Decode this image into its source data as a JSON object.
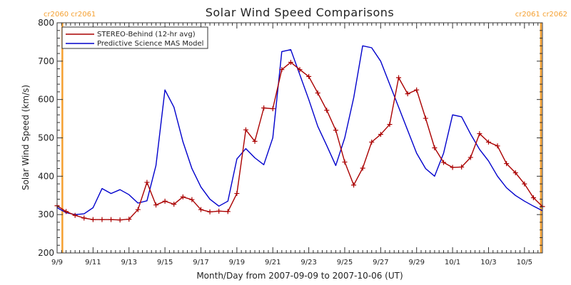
{
  "chart_data": {
    "type": "line",
    "title": "Solar Wind Speed Comparisons",
    "xlabel": "Month/Day from 2007-09-09 to 2007-10-06 (UT)",
    "ylabel": "Solar Wind Speed (km/s)",
    "xlim": [
      "2007-09-09T00:00",
      "2007-10-06T00:00"
    ],
    "ylim": [
      200,
      800
    ],
    "x_tick_labels": [
      "9/9",
      "9/11",
      "9/13",
      "9/15",
      "9/17",
      "9/19",
      "9/21",
      "9/23",
      "9/25",
      "9/27",
      "9/29",
      "10/1",
      "10/3",
      "10/5"
    ],
    "y_tick_labels": [
      "200",
      "300",
      "400",
      "500",
      "600",
      "700",
      "800"
    ],
    "carrington_markers": [
      {
        "label": "cr2060 cr2061",
        "x": "2007-09-09T07:00",
        "position": "left"
      },
      {
        "label": "cr2061 cr2062",
        "x": "2007-10-05T22:00",
        "position": "right"
      }
    ],
    "marker_color": "#f5a030",
    "legend_position": "top-left",
    "series": [
      {
        "name": "STEREO-Behind (12-hr avg)",
        "color": "#aa0000",
        "marker": "plus",
        "x": [
          "2007-09-09T00:00",
          "2007-09-09T12:00",
          "2007-09-10T00:00",
          "2007-09-10T12:00",
          "2007-09-11T00:00",
          "2007-09-11T12:00",
          "2007-09-12T00:00",
          "2007-09-12T12:00",
          "2007-09-13T00:00",
          "2007-09-13T12:00",
          "2007-09-14T00:00",
          "2007-09-14T12:00",
          "2007-09-15T00:00",
          "2007-09-15T12:00",
          "2007-09-16T00:00",
          "2007-09-16T12:00",
          "2007-09-17T00:00",
          "2007-09-17T12:00",
          "2007-09-18T00:00",
          "2007-09-18T12:00",
          "2007-09-19T00:00",
          "2007-09-19T12:00",
          "2007-09-20T00:00",
          "2007-09-20T12:00",
          "2007-09-21T00:00",
          "2007-09-21T12:00",
          "2007-09-22T00:00",
          "2007-09-22T12:00",
          "2007-09-23T00:00",
          "2007-09-23T12:00",
          "2007-09-24T00:00",
          "2007-09-24T12:00",
          "2007-09-25T00:00",
          "2007-09-25T12:00",
          "2007-09-26T00:00",
          "2007-09-26T12:00",
          "2007-09-27T00:00",
          "2007-09-27T12:00",
          "2007-09-28T00:00",
          "2007-09-28T12:00",
          "2007-09-29T00:00",
          "2007-09-29T12:00",
          "2007-09-30T00:00",
          "2007-09-30T12:00",
          "2007-10-01T00:00",
          "2007-10-01T12:00",
          "2007-10-02T00:00",
          "2007-10-02T12:00",
          "2007-10-03T00:00",
          "2007-10-03T12:00",
          "2007-10-04T00:00",
          "2007-10-04T12:00",
          "2007-10-05T00:00",
          "2007-10-05T12:00",
          "2007-10-06T00:00"
        ],
        "values": [
          323,
          308,
          298,
          291,
          287,
          287,
          287,
          286,
          288,
          313,
          384,
          325,
          335,
          327,
          346,
          339,
          313,
          307,
          309,
          308,
          355,
          521,
          491,
          578,
          576,
          678,
          697,
          678,
          660,
          617,
          572,
          520,
          437,
          377,
          421,
          489,
          509,
          535,
          657,
          615,
          625,
          551,
          474,
          436,
          423,
          424,
          449,
          511,
          489,
          479,
          433,
          409,
          380,
          344,
          321
        ]
      },
      {
        "name": "Predictive Science MAS Model",
        "color": "#0000cc",
        "marker": "none",
        "x": [
          "2007-09-09T00:00",
          "2007-09-09T12:00",
          "2007-09-10T00:00",
          "2007-09-10T12:00",
          "2007-09-11T00:00",
          "2007-09-11T12:00",
          "2007-09-12T00:00",
          "2007-09-12T12:00",
          "2007-09-13T00:00",
          "2007-09-13T12:00",
          "2007-09-14T00:00",
          "2007-09-14T12:00",
          "2007-09-15T00:00",
          "2007-09-15T12:00",
          "2007-09-16T00:00",
          "2007-09-16T12:00",
          "2007-09-17T00:00",
          "2007-09-17T12:00",
          "2007-09-18T00:00",
          "2007-09-18T12:00",
          "2007-09-19T00:00",
          "2007-09-19T12:00",
          "2007-09-20T00:00",
          "2007-09-20T12:00",
          "2007-09-21T00:00",
          "2007-09-21T12:00",
          "2007-09-22T00:00",
          "2007-09-22T12:00",
          "2007-09-23T00:00",
          "2007-09-23T12:00",
          "2007-09-24T00:00",
          "2007-09-24T12:00",
          "2007-09-25T00:00",
          "2007-09-25T12:00",
          "2007-09-26T00:00",
          "2007-09-26T12:00",
          "2007-09-27T00:00",
          "2007-09-27T12:00",
          "2007-09-28T00:00",
          "2007-09-28T12:00",
          "2007-09-29T00:00",
          "2007-09-29T12:00",
          "2007-09-30T00:00",
          "2007-09-30T12:00",
          "2007-10-01T00:00",
          "2007-10-01T12:00",
          "2007-10-02T00:00",
          "2007-10-02T12:00",
          "2007-10-03T00:00",
          "2007-10-03T12:00",
          "2007-10-04T00:00",
          "2007-10-04T12:00",
          "2007-10-05T00:00",
          "2007-10-05T12:00",
          "2007-10-06T00:00"
        ],
        "values": [
          318,
          305,
          300,
          302,
          318,
          368,
          355,
          365,
          352,
          330,
          336,
          428,
          625,
          580,
          490,
          420,
          372,
          340,
          322,
          335,
          445,
          472,
          448,
          430,
          500,
          725,
          730,
          665,
          600,
          530,
          480,
          428,
          500,
          605,
          740,
          735,
          700,
          640,
          580,
          520,
          460,
          420,
          400,
          460,
          560,
          555,
          510,
          470,
          440,
          400,
          370,
          350,
          335,
          322,
          310
        ]
      }
    ]
  }
}
